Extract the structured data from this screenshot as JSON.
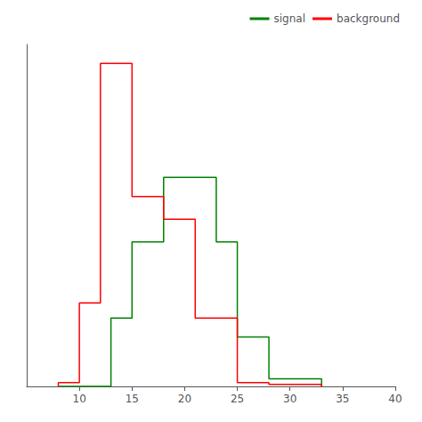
{
  "chart_data": {
    "type": "histogram",
    "series": [
      {
        "name": "signal",
        "color": "#008000",
        "bins": [
          8,
          13,
          15,
          18,
          23,
          25,
          28,
          33
        ],
        "values": [
          0,
          0.18,
          0.38,
          0.55,
          0.38,
          0.13,
          0.02
        ]
      },
      {
        "name": "background",
        "color": "#ff0000",
        "bins": [
          8,
          10,
          12,
          15,
          18,
          21,
          25,
          28,
          33
        ],
        "values": [
          0.01,
          0.22,
          0.85,
          0.5,
          0.44,
          0.18,
          0.01,
          0.005
        ]
      }
    ],
    "xlim": [
      5,
      40
    ],
    "xticks": [
      10,
      15,
      20,
      25,
      30,
      35,
      40
    ],
    "ylim": [
      0,
      0.9
    ],
    "tick_labels": "x",
    "grid": false,
    "legend": "upper right"
  }
}
